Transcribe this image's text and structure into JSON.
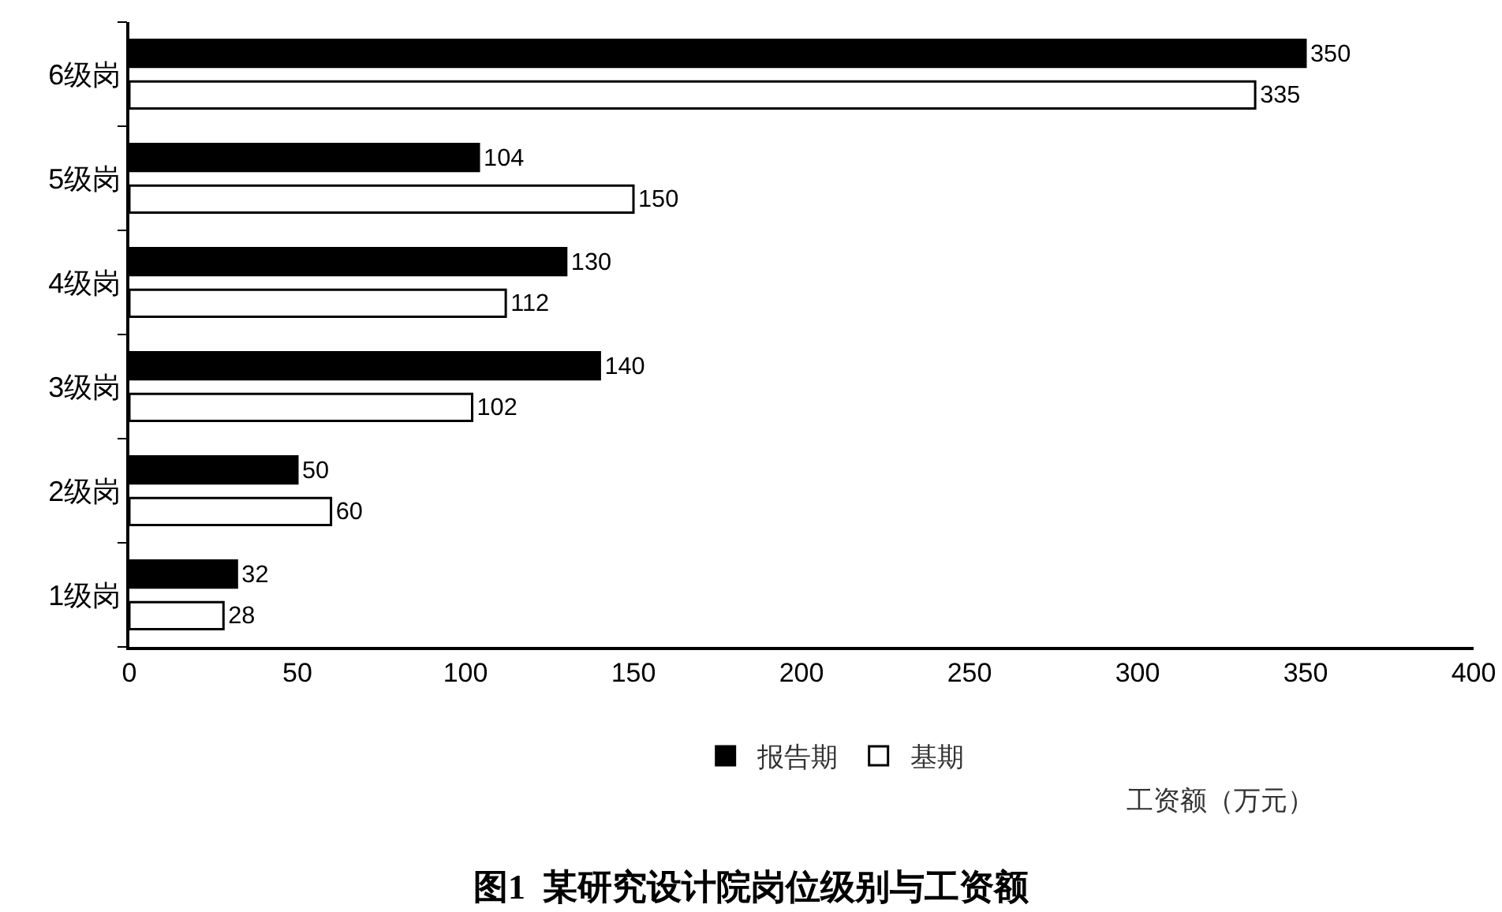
{
  "chart_data": {
    "type": "bar",
    "orientation": "horizontal",
    "title": "图1  某研究设计院岗位级别与工资额",
    "xlabel": "工资额（万元）",
    "categories": [
      "6级岗",
      "5级岗",
      "4级岗",
      "3级岗",
      "2级岗",
      "1级岗"
    ],
    "series": [
      {
        "name": "报告期",
        "color": "#000000",
        "values": [
          350,
          104,
          130,
          140,
          50,
          32
        ]
      },
      {
        "name": "基期",
        "color": "#ffffff",
        "values": [
          335,
          150,
          112,
          102,
          60,
          28
        ]
      }
    ],
    "xlim": [
      0,
      400
    ],
    "xticks": [
      0,
      50,
      100,
      150,
      200,
      250,
      300,
      350,
      400
    ],
    "data_labels": true,
    "grid": false,
    "legend": "bottom"
  }
}
